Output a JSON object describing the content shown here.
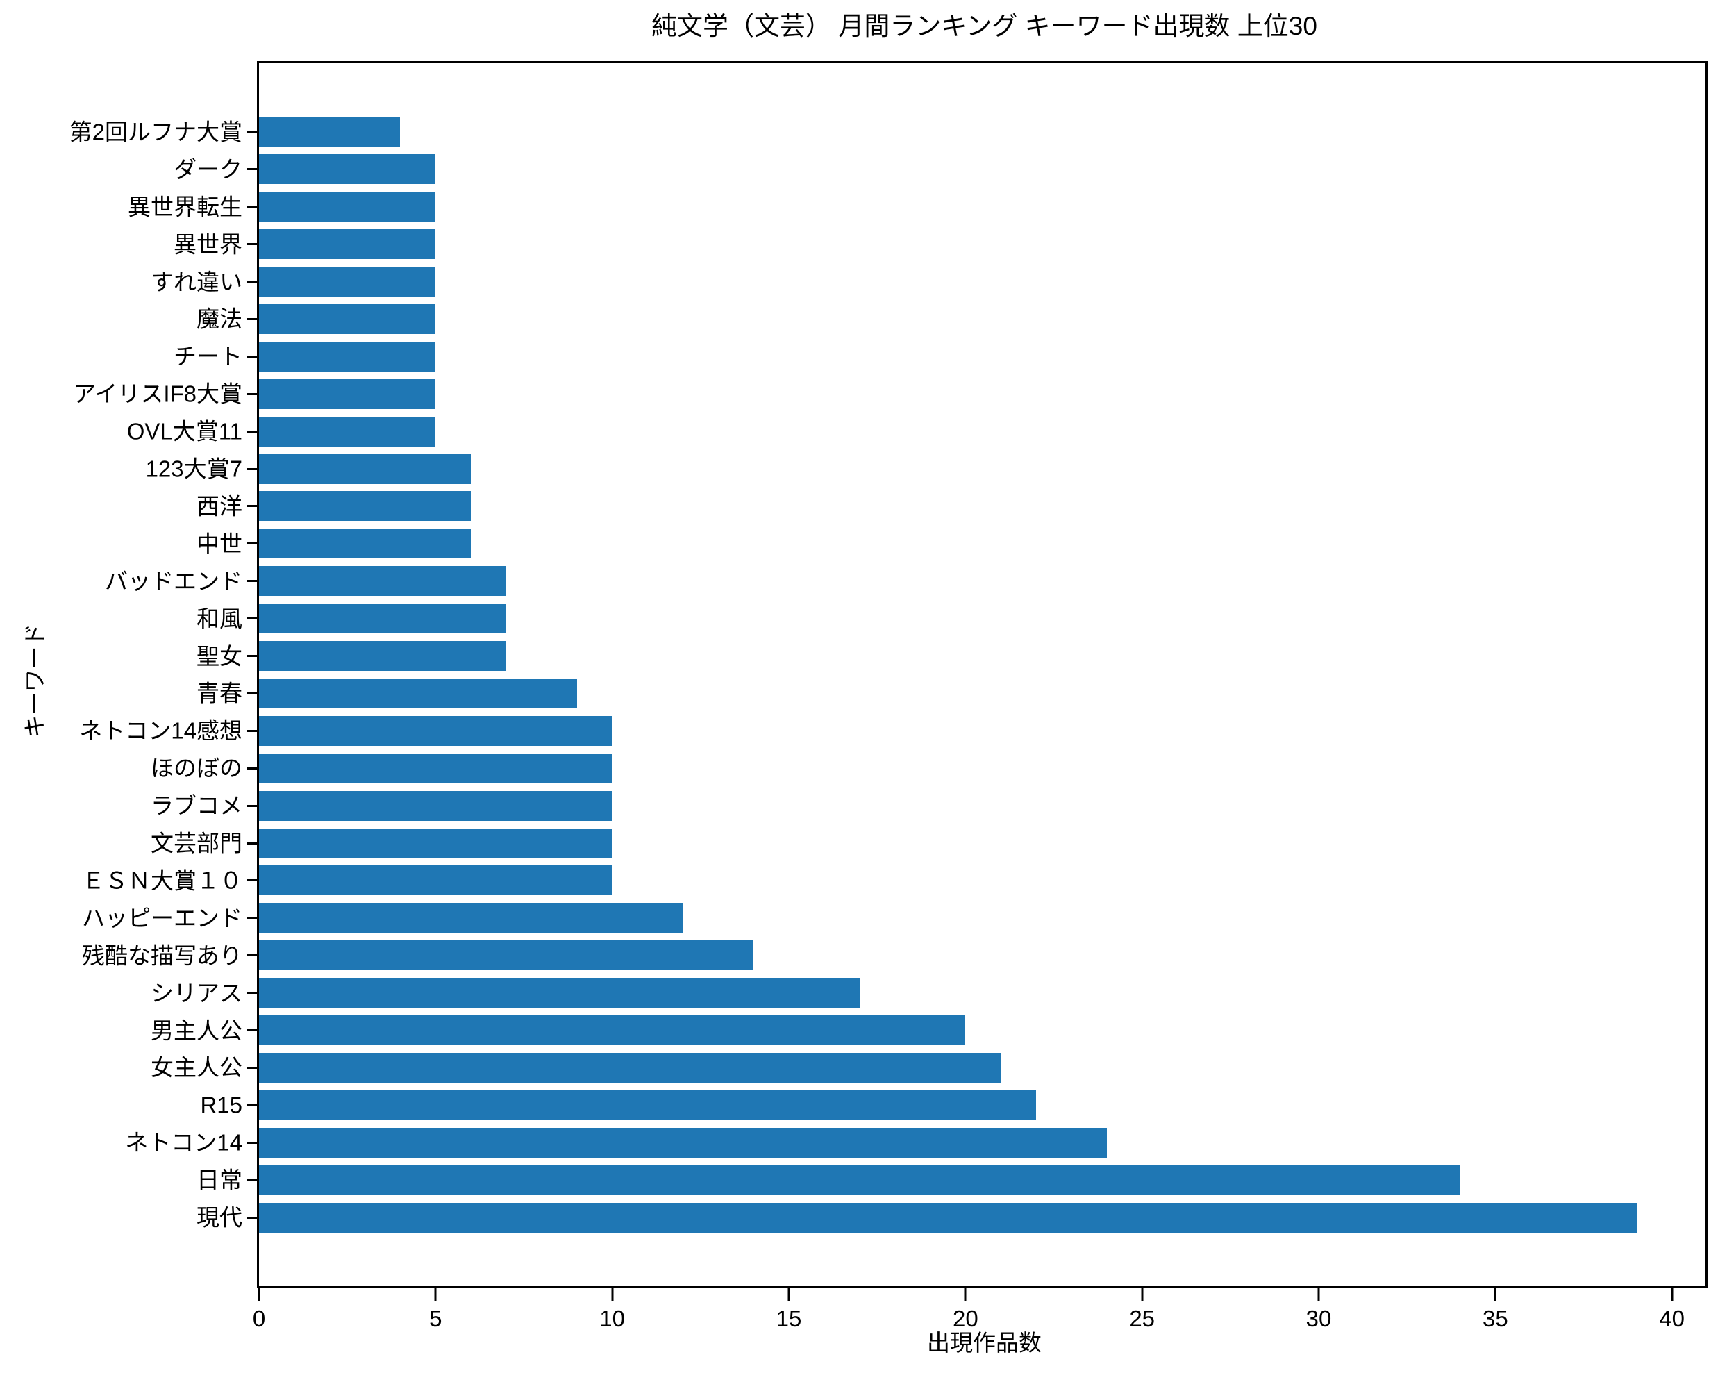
{
  "chart_data": {
    "type": "bar",
    "orientation": "horizontal",
    "title": "純文学（文芸） 月間ランキング キーワード出現数 上位30",
    "xlabel": "出現作品数",
    "ylabel": "キーワード",
    "categories_order": "top-to-bottom",
    "categories": [
      "第2回ルフナ大賞",
      "ダーク",
      "異世界転生",
      "異世界",
      "すれ違い",
      "魔法",
      "チート",
      "アイリスIF8大賞",
      "OVL大賞11",
      "123大賞7",
      "西洋",
      "中世",
      "バッドエンド",
      "和風",
      "聖女",
      "青春",
      "ネトコン14感想",
      "ほのぼの",
      "ラブコメ",
      "文芸部門",
      "ＥＳＮ大賞１０",
      "ハッピーエンド",
      "残酷な描写あり",
      "シリアス",
      "男主人公",
      "女主人公",
      "R15",
      "ネトコン14",
      "日常",
      "現代"
    ],
    "values": [
      4,
      5,
      5,
      5,
      5,
      5,
      5,
      5,
      5,
      6,
      6,
      6,
      7,
      7,
      7,
      9,
      10,
      10,
      10,
      10,
      10,
      12,
      14,
      17,
      20,
      21,
      22,
      24,
      34,
      39
    ],
    "xticks": [
      0,
      5,
      10,
      15,
      20,
      25,
      30,
      35,
      40
    ],
    "xlim": [
      0,
      40.95
    ],
    "grid": false,
    "legend": "none",
    "bar_color": "#1f77b4",
    "axis_color": "#000000",
    "background_color": "#ffffff",
    "text_color": "#000000"
  }
}
